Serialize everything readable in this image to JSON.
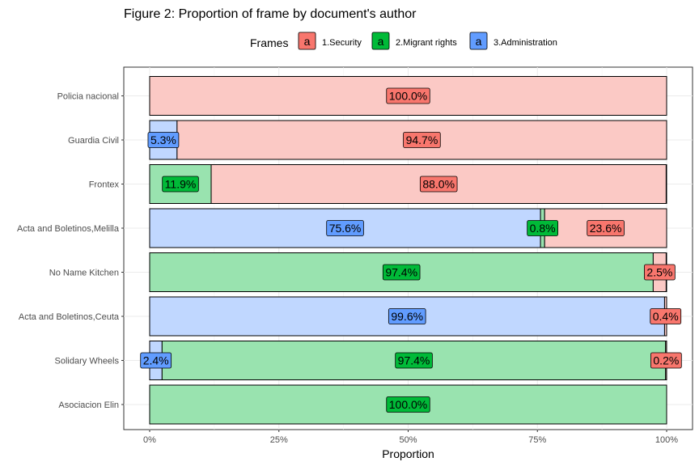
{
  "chart_data": {
    "type": "bar",
    "orientation": "horizontal",
    "stacked": "proportion",
    "title": "Figure 2: Proportion of frame by document's author",
    "xlabel": "Proportion",
    "ylabel": "",
    "xlim": [
      0,
      1
    ],
    "x_ticks": [
      {
        "value": 0,
        "label": "0%"
      },
      {
        "value": 0.25,
        "label": "25%"
      },
      {
        "value": 0.5,
        "label": "50%"
      },
      {
        "value": 0.75,
        "label": "75%"
      },
      {
        "value": 1,
        "label": "100%"
      }
    ],
    "legend": {
      "title": "Frames",
      "position": "top",
      "key_glyph": "a"
    },
    "grid": true,
    "categories": [
      "Policia nacional",
      "Guardia Civil",
      "Frontex",
      "Acta and Boletinos,Melilla",
      "No Name Kitchen",
      "Acta and Boletinos,Ceuta",
      "Solidary Wheels",
      "Asociacion Elin"
    ],
    "stack_order": [
      "3.Administration",
      "2.Migrant rights",
      "1.Security"
    ],
    "series": [
      {
        "name": "1.Security",
        "color": "#F8766D",
        "fill_light": "#FBC9C5",
        "values": [
          1.0,
          0.947,
          0.88,
          0.236,
          0.025,
          0.004,
          0.002,
          0.0
        ],
        "labels": [
          "100.0%",
          "94.7%",
          "88.0%",
          "23.6%",
          "2.5%",
          "0.4%",
          "0.2%",
          null
        ]
      },
      {
        "name": "2.Migrant rights",
        "color": "#00BA38",
        "fill_light": "#99E3AF",
        "values": [
          0.0,
          0.0,
          0.119,
          0.008,
          0.974,
          0.0,
          0.974,
          1.0
        ],
        "labels": [
          null,
          null,
          "11.9%",
          "0.8%",
          "97.4%",
          null,
          "97.4%",
          "100.0%"
        ]
      },
      {
        "name": "3.Administration",
        "color": "#619CFF",
        "fill_light": "#C0D7FF",
        "values": [
          0.0,
          0.053,
          0.0,
          0.756,
          0.0,
          0.996,
          0.024,
          0.0
        ],
        "labels": [
          null,
          "5.3%",
          null,
          "75.6%",
          null,
          "99.6%",
          "2.4%",
          null
        ]
      }
    ]
  }
}
